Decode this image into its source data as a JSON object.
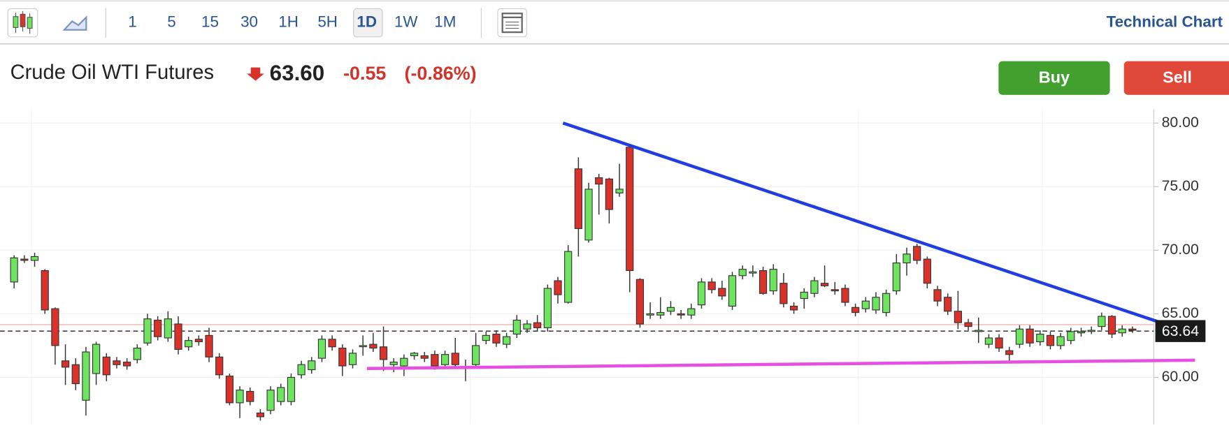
{
  "toolbar": {
    "intervals": [
      "1",
      "5",
      "15",
      "30",
      "1H",
      "5H",
      "1D",
      "1W",
      "1M"
    ],
    "selected": 6,
    "link": "Technical Chart"
  },
  "header": {
    "title": "Crude Oil WTI Futures",
    "price": "63.60",
    "change": "-0.55",
    "change_percent": "(-0.86%)"
  },
  "buttons": [
    "Buy",
    "Sell"
  ],
  "chart_data": {
    "type": "candlestick",
    "open": [
      67.5,
      69.3,
      69.2,
      68.4,
      65.4,
      61.3,
      61.0,
      58.2,
      60.3,
      61.6,
      61.3,
      61.2,
      61.4,
      62.7,
      64.5,
      63.1,
      64.2,
      62.4,
      63.0,
      63.3,
      61.6,
      60.1,
      58.0,
      58.9,
      57.2,
      57.4,
      58.1,
      58.1,
      60.2,
      60.6,
      61.5,
      63.0,
      62.3,
      61.0,
      62.5,
      62.6,
      62.4,
      61.0,
      60.9,
      61.7,
      61.7,
      61.8,
      61.0,
      61.9,
      60.8,
      61.0,
      62.9,
      63.4,
      62.6,
      63.4,
      63.8,
      64.3,
      63.9,
      67.6,
      65.9,
      76.4,
      70.8,
      75.7,
      75.6,
      74.5,
      78.1,
      67.7,
      64.9,
      64.9,
      65.2,
      65.0,
      64.9,
      65.7,
      67.5,
      67.0,
      65.6,
      68.0,
      68.2,
      68.4,
      66.8,
      67.4,
      65.6,
      66.2,
      66.6,
      67.4,
      66.9,
      67.0,
      65.5,
      65.4,
      65.3,
      65.1,
      66.8,
      69.0,
      70.3,
      69.3,
      66.9,
      66.3,
      65.2,
      64.3,
      63.6,
      62.6,
      63.1,
      62.1,
      62.6,
      63.8,
      62.8,
      63.3,
      62.5,
      62.9,
      63.5,
      63.7,
      64.0,
      64.8,
      63.5,
      63.8
    ],
    "high": [
      69.6,
      69.6,
      69.8,
      68.5,
      65.5,
      62.6,
      61.5,
      62.4,
      62.8,
      61.9,
      61.6,
      61.5,
      62.6,
      65.0,
      64.8,
      65.2,
      64.8,
      63.2,
      63.3,
      63.9,
      61.9,
      60.3,
      59.3,
      59.2,
      57.5,
      59.3,
      59.5,
      60.3,
      61.3,
      61.6,
      63.3,
      63.3,
      62.6,
      62.2,
      63.3,
      63.5,
      64.0,
      61.5,
      61.8,
      62.0,
      62.0,
      62.1,
      62.1,
      63.1,
      61.4,
      63.5,
      63.6,
      63.7,
      63.5,
      64.9,
      64.5,
      64.9,
      67.3,
      67.9,
      70.4,
      77.3,
      75.3,
      76.0,
      75.7,
      76.8,
      78.3,
      67.8,
      65.9,
      66.3,
      66.0,
      65.3,
      65.8,
      67.8,
      67.8,
      67.6,
      68.3,
      68.8,
      68.8,
      68.7,
      68.9,
      68.2,
      65.9,
      67.0,
      67.9,
      68.8,
      67.5,
      67.3,
      65.8,
      66.3,
      66.7,
      66.9,
      69.7,
      70.2,
      70.5,
      69.5,
      67.2,
      66.6,
      66.8,
      64.6,
      64.7,
      63.4,
      63.4,
      62.4,
      64.1,
      64.1,
      63.7,
      63.6,
      63.5,
      63.9,
      63.9,
      64.0,
      65.1,
      64.9,
      64.1,
      64.0
    ],
    "low": [
      67.0,
      69.0,
      68.7,
      65.0,
      61.0,
      59.4,
      59.0,
      57.0,
      59.4,
      59.7,
      60.7,
      60.6,
      61.1,
      62.5,
      62.9,
      62.8,
      61.8,
      62.1,
      62.5,
      61.2,
      59.9,
      57.8,
      56.8,
      57.8,
      56.6,
      57.1,
      57.8,
      57.8,
      59.9,
      60.3,
      61.2,
      62.1,
      60.1,
      60.7,
      61.7,
      62.0,
      60.5,
      60.4,
      60.1,
      61.4,
      61.2,
      60.6,
      60.7,
      60.7,
      59.7,
      60.7,
      62.6,
      62.4,
      62.3,
      63.1,
      63.5,
      63.6,
      63.6,
      65.8,
      65.8,
      69.5,
      70.6,
      72.8,
      72.1,
      74.2,
      66.7,
      63.9,
      64.6,
      64.6,
      64.9,
      64.6,
      64.6,
      65.4,
      66.6,
      66.1,
      65.3,
      67.7,
      67.9,
      66.5,
      66.5,
      65.5,
      65.0,
      65.4,
      66.3,
      67.1,
      66.5,
      65.6,
      64.8,
      65.1,
      65.0,
      64.8,
      66.5,
      68.0,
      68.9,
      67.0,
      65.6,
      64.9,
      63.8,
      63.7,
      62.7,
      62.3,
      62.0,
      61.2,
      62.3,
      62.4,
      62.5,
      62.2,
      62.2,
      62.6,
      63.2,
      63.4,
      63.7,
      63.1,
      63.2,
      63.5
    ],
    "close": [
      69.4,
      69.2,
      69.5,
      65.3,
      62.5,
      60.8,
      59.5,
      62.0,
      62.6,
      60.2,
      61.0,
      60.9,
      62.3,
      64.6,
      63.2,
      64.6,
      62.2,
      62.9,
      62.8,
      61.6,
      60.2,
      58.0,
      59.0,
      58.1,
      56.9,
      59.0,
      59.2,
      60.0,
      61.0,
      61.3,
      63.0,
      62.4,
      60.9,
      61.9,
      62.5,
      62.3,
      61.4,
      61.2,
      61.5,
      61.9,
      61.5,
      60.9,
      61.8,
      61.0,
      60.8,
      62.5,
      63.3,
      62.7,
      63.2,
      64.5,
      64.2,
      63.9,
      67.0,
      66.5,
      69.9,
      71.7,
      74.8,
      75.2,
      73.2,
      74.8,
      68.4,
      64.2,
      65.0,
      65.1,
      65.5,
      64.9,
      65.4,
      67.5,
      66.9,
      66.4,
      68.0,
      68.5,
      68.3,
      66.6,
      68.5,
      65.8,
      65.3,
      66.7,
      67.6,
      67.2,
      66.8,
      65.9,
      65.1,
      66.0,
      66.3,
      66.6,
      69.0,
      69.7,
      69.2,
      67.4,
      66.0,
      65.2,
      64.3,
      64.0,
      63.7,
      63.1,
      62.3,
      61.8,
      63.8,
      62.7,
      63.4,
      62.5,
      63.2,
      63.6,
      63.6,
      63.7,
      64.8,
      63.4,
      63.8,
      63.7
    ],
    "up_color": "#6ee35f",
    "down_color": "#d8322a",
    "ylim": [
      56.3,
      81.05
    ],
    "yticks": [
      {
        "value": 60,
        "label": "60.00"
      },
      {
        "value": 65,
        "label": "65.00"
      },
      {
        "value": 70,
        "label": "70.00"
      },
      {
        "value": 75,
        "label": "75.00"
      },
      {
        "value": 80,
        "label": "80.00"
      }
    ],
    "grid": true,
    "previous_close": 64.15,
    "last_price": {
      "value": 63.64,
      "label": "63.64"
    },
    "trendlines": [
      {
        "color": "#1f3de0",
        "x": [
          53.5,
          115.5
        ],
        "values": [
          80.0,
          63.3
        ]
      },
      {
        "color": "#e64fe0",
        "x": [
          34.4,
          115.1
        ],
        "values": [
          60.7,
          61.35
        ]
      }
    ]
  }
}
